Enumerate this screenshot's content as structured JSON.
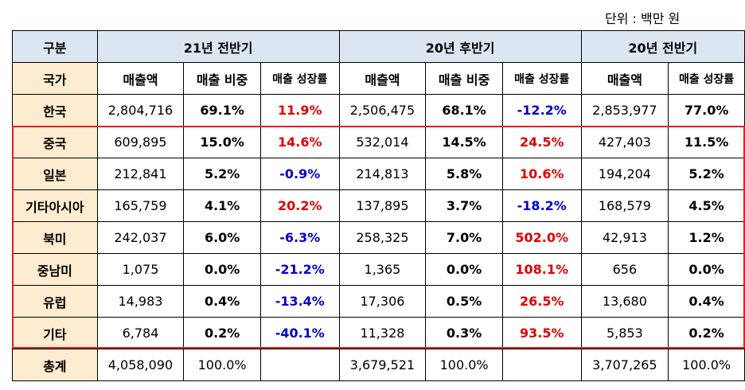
{
  "unit": "단위 : 백만 원",
  "header": {
    "col0": "구분",
    "periods": [
      "21년 전반기",
      "20년 후반기",
      "20년 전반기"
    ]
  },
  "subheader": {
    "col0": "국가",
    "cols": [
      "매출액",
      "매출 비중",
      "매출 성장률",
      "매출액",
      "매출 비중",
      "매출 성장률",
      "매출액",
      "매출 성장률"
    ]
  },
  "rows": [
    {
      "country": "한국",
      "c": [
        "2,804,716",
        "69.1%",
        "11.9%",
        "2,506,475",
        "68.1%",
        "-12.2%",
        "2,853,977",
        "77.0%"
      ]
    },
    {
      "country": "중국",
      "c": [
        "609,895",
        "15.0%",
        "14.6%",
        "532,014",
        "14.5%",
        "24.5%",
        "427,403",
        "11.5%"
      ]
    },
    {
      "country": "일본",
      "c": [
        "212,841",
        "5.2%",
        "-0.9%",
        "214,813",
        "5.8%",
        "10.6%",
        "194,204",
        "5.2%"
      ]
    },
    {
      "country": "기타아시아",
      "c": [
        "165,759",
        "4.1%",
        "20.2%",
        "137,895",
        "3.7%",
        "-18.2%",
        "168,579",
        "4.5%"
      ]
    },
    {
      "country": "북미",
      "c": [
        "242,037",
        "6.0%",
        "-6.3%",
        "258,325",
        "7.0%",
        "502.0%",
        "42,913",
        "1.2%"
      ]
    },
    {
      "country": "중남미",
      "c": [
        "1,075",
        "0.0%",
        "-21.2%",
        "1,365",
        "0.0%",
        "108.1%",
        "656",
        "0.0%"
      ]
    },
    {
      "country": "유럽",
      "c": [
        "14,983",
        "0.4%",
        "-13.4%",
        "17,306",
        "0.5%",
        "26.5%",
        "13,680",
        "0.4%"
      ]
    },
    {
      "country": "기타",
      "c": [
        "6,784",
        "0.2%",
        "-40.1%",
        "11,328",
        "0.3%",
        "93.5%",
        "5,853",
        "0.2%"
      ]
    },
    {
      "country": "총계",
      "c": [
        "4,058,090",
        "100.0%",
        "",
        "3,679,521",
        "100.0%",
        "",
        "3,707,265",
        "100.0%"
      ]
    }
  ],
  "colors": {
    "positive": "#e00000",
    "negative": "#0000cc",
    "header_bg": "#dce6f1",
    "label_bg": "#fdeccf",
    "highlight_border": "#e02020"
  }
}
